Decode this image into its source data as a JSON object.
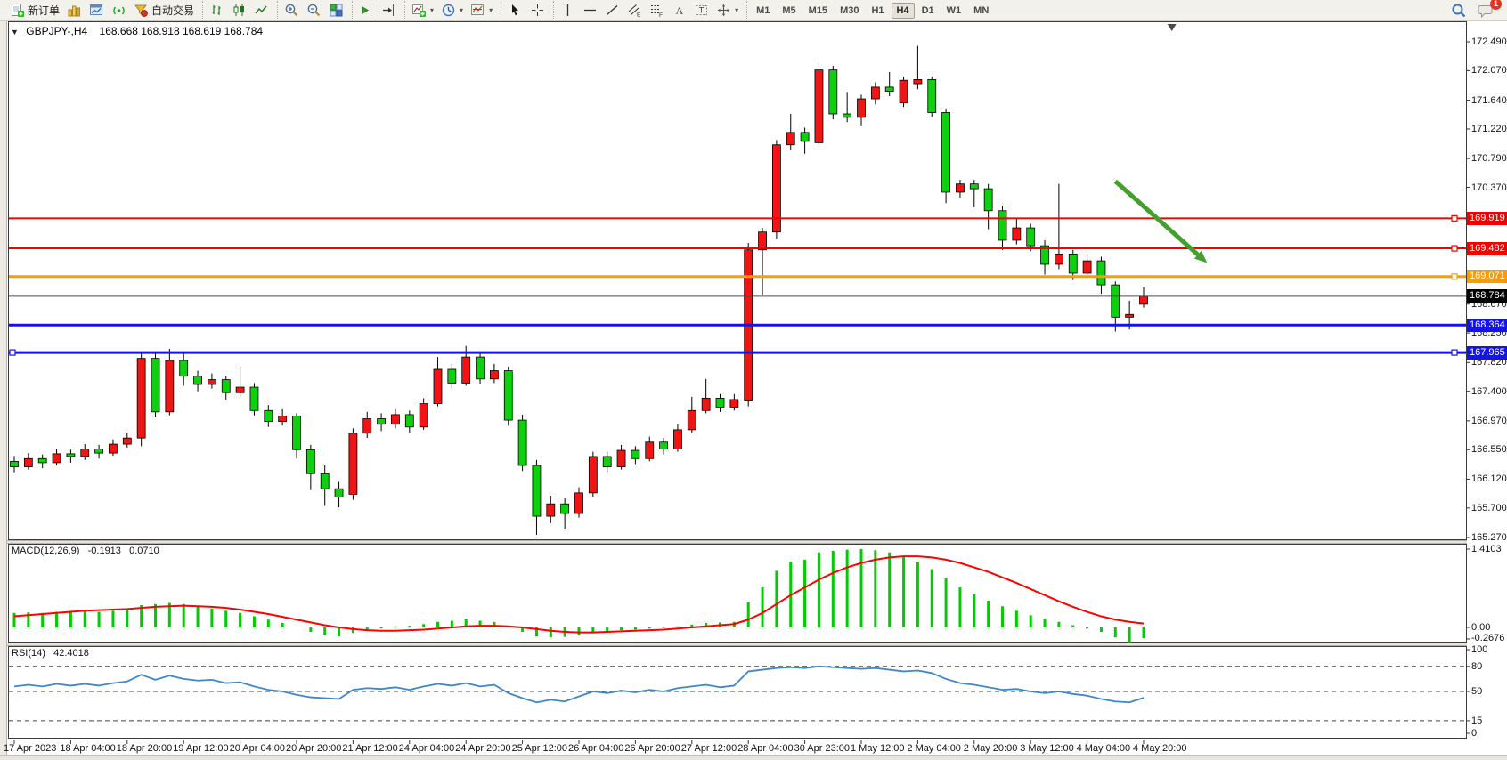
{
  "toolbar": {
    "groups": [
      {
        "name": "trade",
        "items": [
          {
            "name": "new-order-button",
            "icon": "new-order-icon",
            "label": "新订单"
          },
          {
            "name": "chart-window-button",
            "icon": "gold-chart-icon"
          },
          {
            "name": "market-watch-button",
            "icon": "market-watch-icon"
          },
          {
            "name": "signals-button",
            "icon": "signals-icon"
          },
          {
            "name": "auto-trading-button",
            "icon": "auto-trading-icon",
            "label": "自动交易"
          }
        ]
      },
      {
        "name": "chart-type",
        "items": [
          {
            "name": "bar-chart-button",
            "icon": "bar-chart-icon"
          },
          {
            "name": "candlestick-chart-button",
            "icon": "candlestick-chart-icon"
          },
          {
            "name": "line-chart-button",
            "icon": "line-chart-icon"
          }
        ]
      },
      {
        "name": "zoom",
        "items": [
          {
            "name": "zoom-in-button",
            "icon": "zoom-in-icon"
          },
          {
            "name": "zoom-out-button",
            "icon": "zoom-out-icon"
          },
          {
            "name": "tile-windows-button",
            "icon": "tile-windows-icon"
          }
        ]
      },
      {
        "name": "scroll",
        "items": [
          {
            "name": "auto-scroll-button",
            "icon": "auto-scroll-icon"
          },
          {
            "name": "chart-shift-button",
            "icon": "chart-shift-icon"
          }
        ]
      },
      {
        "name": "insert",
        "items": [
          {
            "name": "indicators-button",
            "icon": "indicators-icon",
            "caret": true
          },
          {
            "name": "periods-button",
            "icon": "clock-icon",
            "caret": true
          },
          {
            "name": "templates-button",
            "icon": "templates-icon",
            "caret": true
          }
        ]
      },
      {
        "name": "pointer",
        "items": [
          {
            "name": "cursor-button",
            "icon": "cursor-icon"
          },
          {
            "name": "crosshair-button",
            "icon": "crosshair-icon"
          }
        ]
      },
      {
        "name": "draw",
        "items": [
          {
            "name": "vertical-line-button",
            "icon": "vertical-line-icon"
          },
          {
            "name": "horizontal-line-button",
            "icon": "horizontal-line-icon"
          },
          {
            "name": "trendline-button",
            "icon": "trendline-icon"
          },
          {
            "name": "channel-button",
            "icon": "channel-icon"
          },
          {
            "name": "fibonacci-button",
            "icon": "fibonacci-icon"
          },
          {
            "name": "text-button",
            "icon": "text-icon"
          },
          {
            "name": "label-button",
            "icon": "label-icon"
          },
          {
            "name": "arrows-button",
            "icon": "arrows-icon",
            "caret": true
          }
        ]
      }
    ],
    "timeframes": {
      "options": [
        "M1",
        "M5",
        "M15",
        "M30",
        "H1",
        "H4",
        "D1",
        "W1",
        "MN"
      ],
      "active": "H4"
    },
    "right": [
      {
        "name": "search-button",
        "icon": "search-icon"
      },
      {
        "name": "chat-button",
        "icon": "chat-icon",
        "badge": "1"
      }
    ]
  },
  "chart": {
    "title": "GBPJPY-,H4",
    "ohlc_text": "168.668 168.918 168.619 168.784"
  },
  "chart_data": {
    "type": "candlestick",
    "symbol": "GBPJPY-",
    "timeframe": "H4",
    "colors": {
      "bull": "#f01414",
      "bear": "#0ed00e",
      "wick": "#000000",
      "macd_histogram": "#00cc00",
      "macd_signal": "#ff0000",
      "rsi_line": "#3f87c9",
      "arrow": "#44a02c"
    },
    "y_axis": {
      "min": 165.27,
      "max": 172.49,
      "ticks": [
        "172.490",
        "172.070",
        "171.640",
        "171.220",
        "170.790",
        "170.370",
        "168.670",
        "168.250",
        "167.820",
        "167.400",
        "166.970",
        "166.550",
        "166.120",
        "165.700",
        "165.270"
      ]
    },
    "x_labels": [
      "17 Apr 2023",
      "18 Apr 04:00",
      "18 Apr 20:00",
      "19 Apr 12:00",
      "20 Apr 04:00",
      "20 Apr 20:00",
      "21 Apr 12:00",
      "24 Apr 04:00",
      "24 Apr 20:00",
      "25 Apr 12:00",
      "26 Apr 04:00",
      "26 Apr 20:00",
      "27 Apr 12:00",
      "28 Apr 04:00",
      "30 Apr 23:00",
      "1 May 12:00",
      "2 May 04:00",
      "2 May 20:00",
      "3 May 12:00",
      "4 May 04:00",
      "4 May 20:00"
    ],
    "x_label_every": 4,
    "candles": [
      [
        166.38,
        166.46,
        166.22,
        166.3
      ],
      [
        166.3,
        166.5,
        166.26,
        166.42
      ],
      [
        166.42,
        166.48,
        166.28,
        166.36
      ],
      [
        166.36,
        166.56,
        166.32,
        166.49
      ],
      [
        166.49,
        166.55,
        166.36,
        166.45
      ],
      [
        166.45,
        166.63,
        166.4,
        166.56
      ],
      [
        166.56,
        166.62,
        166.42,
        166.5
      ],
      [
        166.5,
        166.7,
        166.46,
        166.63
      ],
      [
        166.63,
        166.8,
        166.58,
        166.72
      ],
      [
        166.72,
        167.95,
        166.6,
        167.88
      ],
      [
        167.88,
        167.96,
        167.02,
        167.1
      ],
      [
        167.1,
        168.02,
        167.05,
        167.85
      ],
      [
        167.85,
        167.95,
        167.48,
        167.62
      ],
      [
        167.62,
        167.7,
        167.4,
        167.5
      ],
      [
        167.5,
        167.66,
        167.44,
        167.57
      ],
      [
        167.57,
        167.62,
        167.28,
        167.38
      ],
      [
        167.38,
        167.76,
        167.32,
        167.46
      ],
      [
        167.46,
        167.52,
        167.05,
        167.12
      ],
      [
        167.12,
        167.2,
        166.88,
        166.96
      ],
      [
        166.96,
        167.14,
        166.9,
        167.04
      ],
      [
        167.04,
        167.08,
        166.42,
        166.55
      ],
      [
        166.55,
        166.62,
        165.96,
        166.2
      ],
      [
        166.2,
        166.32,
        165.73,
        165.98
      ],
      [
        165.98,
        166.08,
        165.71,
        165.86
      ],
      [
        165.9,
        166.86,
        165.82,
        166.79
      ],
      [
        166.79,
        167.1,
        166.72,
        167.0
      ],
      [
        167.0,
        167.08,
        166.82,
        166.92
      ],
      [
        166.92,
        167.14,
        166.86,
        167.06
      ],
      [
        167.06,
        167.12,
        166.8,
        166.88
      ],
      [
        166.88,
        167.3,
        166.84,
        167.22
      ],
      [
        167.22,
        167.9,
        167.18,
        167.72
      ],
      [
        167.72,
        167.8,
        167.44,
        167.52
      ],
      [
        167.52,
        168.06,
        167.48,
        167.9
      ],
      [
        167.9,
        167.98,
        167.5,
        167.58
      ],
      [
        167.58,
        167.8,
        167.52,
        167.7
      ],
      [
        167.7,
        167.76,
        166.9,
        166.98
      ],
      [
        166.98,
        167.06,
        166.24,
        166.32
      ],
      [
        166.32,
        166.4,
        165.31,
        165.58
      ],
      [
        165.58,
        165.88,
        165.48,
        165.76
      ],
      [
        165.76,
        165.84,
        165.4,
        165.62
      ],
      [
        165.62,
        166.0,
        165.56,
        165.92
      ],
      [
        165.92,
        166.52,
        165.86,
        166.45
      ],
      [
        166.45,
        166.52,
        166.22,
        166.3
      ],
      [
        166.3,
        166.62,
        166.26,
        166.54
      ],
      [
        166.54,
        166.6,
        166.34,
        166.42
      ],
      [
        166.42,
        166.74,
        166.38,
        166.66
      ],
      [
        166.66,
        166.72,
        166.48,
        166.56
      ],
      [
        166.56,
        166.92,
        166.52,
        166.84
      ],
      [
        166.84,
        167.32,
        166.8,
        167.12
      ],
      [
        167.12,
        167.58,
        167.08,
        167.3
      ],
      [
        167.3,
        167.36,
        167.1,
        167.17
      ],
      [
        167.17,
        167.36,
        167.12,
        167.28
      ],
      [
        167.26,
        169.56,
        167.18,
        169.46
      ],
      [
        169.46,
        169.78,
        168.8,
        169.72
      ],
      [
        169.72,
        171.06,
        169.62,
        170.99
      ],
      [
        170.99,
        171.44,
        170.92,
        171.17
      ],
      [
        171.17,
        171.24,
        170.86,
        171.04
      ],
      [
        171.02,
        172.2,
        170.96,
        172.08
      ],
      [
        172.08,
        172.14,
        171.36,
        171.44
      ],
      [
        171.44,
        171.76,
        171.32,
        171.39
      ],
      [
        171.39,
        171.72,
        171.26,
        171.66
      ],
      [
        171.66,
        171.9,
        171.58,
        171.83
      ],
      [
        171.83,
        172.05,
        171.7,
        171.77
      ],
      [
        171.6,
        171.98,
        171.54,
        171.93
      ],
      [
        171.88,
        172.43,
        171.8,
        171.94
      ],
      [
        171.94,
        171.98,
        171.4,
        171.46
      ],
      [
        171.46,
        171.52,
        170.14,
        170.3
      ],
      [
        170.3,
        170.48,
        170.22,
        170.42
      ],
      [
        170.42,
        170.48,
        170.08,
        170.35
      ],
      [
        170.35,
        170.42,
        169.76,
        170.03
      ],
      [
        170.03,
        170.1,
        169.46,
        169.6
      ],
      [
        169.6,
        169.92,
        169.54,
        169.78
      ],
      [
        169.78,
        169.84,
        169.44,
        169.52
      ],
      [
        169.52,
        169.6,
        169.1,
        169.25
      ],
      [
        169.25,
        170.42,
        169.18,
        169.4
      ],
      [
        169.4,
        169.46,
        169.02,
        169.12
      ],
      [
        169.12,
        169.38,
        169.06,
        169.3
      ],
      [
        169.3,
        169.36,
        168.82,
        168.95
      ],
      [
        168.95,
        169.0,
        168.27,
        168.48
      ],
      [
        168.48,
        168.72,
        168.3,
        168.52
      ],
      [
        168.668,
        168.918,
        168.619,
        168.784
      ]
    ],
    "levels": [
      {
        "value": 169.919,
        "label": "169.919",
        "color": "#f40000",
        "width": 2,
        "anchor": "right"
      },
      {
        "value": 169.482,
        "label": "169.482",
        "color": "#f40000",
        "width": 2,
        "anchor": "right"
      },
      {
        "value": 169.071,
        "label": "169.071",
        "color": "#ff9a00",
        "width": 3,
        "anchor": "right"
      },
      {
        "value": 168.364,
        "label": "168.364",
        "color": "#1414e6",
        "width": 3,
        "anchor": "none"
      },
      {
        "value": 167.965,
        "label": "167.965",
        "color": "#1414e6",
        "width": 3,
        "anchor": "both"
      }
    ],
    "current_price": {
      "value": 168.784,
      "label": "168.784",
      "color": "#000000"
    },
    "annotation_arrow": {
      "from_index": 78,
      "from_price": 170.46,
      "to_index": 84.5,
      "to_price": 169.27,
      "color": "#44a02c"
    },
    "macd": {
      "label": "MACD(12,26,9)",
      "value": "-0.1913",
      "signal_value": "0.0710",
      "ticks": [
        {
          "text": "1.4103",
          "v": 1.4103
        },
        {
          "text": "0.00",
          "v": 0.0
        },
        {
          "text": "-0.2676",
          "v": -0.2676
        }
      ],
      "histogram": [
        0.26,
        0.27,
        0.26,
        0.28,
        0.27,
        0.29,
        0.28,
        0.3,
        0.32,
        0.4,
        0.42,
        0.44,
        0.42,
        0.38,
        0.34,
        0.3,
        0.26,
        0.2,
        0.14,
        0.08,
        0.0,
        -0.08,
        -0.14,
        -0.16,
        -0.1,
        -0.05,
        -0.02,
        0.02,
        0.03,
        0.06,
        0.1,
        0.12,
        0.15,
        0.12,
        0.1,
        0.02,
        -0.08,
        -0.16,
        -0.18,
        -0.17,
        -0.14,
        -0.1,
        -0.08,
        -0.05,
        -0.04,
        -0.02,
        -0.01,
        0.02,
        0.05,
        0.08,
        0.09,
        0.1,
        0.45,
        0.72,
        1.02,
        1.18,
        1.22,
        1.35,
        1.38,
        1.4,
        1.41,
        1.39,
        1.35,
        1.28,
        1.18,
        1.05,
        0.88,
        0.72,
        0.6,
        0.48,
        0.38,
        0.3,
        0.22,
        0.15,
        0.1,
        0.04,
        -0.02,
        -0.08,
        -0.18,
        -0.268,
        -0.191
      ],
      "signal": [
        0.2,
        0.22,
        0.24,
        0.26,
        0.28,
        0.3,
        0.31,
        0.32,
        0.33,
        0.35,
        0.37,
        0.38,
        0.39,
        0.38,
        0.37,
        0.35,
        0.32,
        0.28,
        0.24,
        0.19,
        0.14,
        0.09,
        0.04,
        0.0,
        -0.03,
        -0.05,
        -0.06,
        -0.06,
        -0.05,
        -0.04,
        -0.02,
        0.0,
        0.02,
        0.03,
        0.03,
        0.02,
        0.0,
        -0.03,
        -0.06,
        -0.08,
        -0.09,
        -0.09,
        -0.08,
        -0.07,
        -0.06,
        -0.05,
        -0.04,
        -0.02,
        0.0,
        0.02,
        0.04,
        0.06,
        0.14,
        0.26,
        0.42,
        0.58,
        0.72,
        0.86,
        0.98,
        1.08,
        1.16,
        1.22,
        1.26,
        1.28,
        1.28,
        1.26,
        1.22,
        1.16,
        1.08,
        1.0,
        0.9,
        0.8,
        0.69,
        0.58,
        0.47,
        0.37,
        0.28,
        0.2,
        0.14,
        0.1,
        0.071
      ]
    },
    "rsi": {
      "label": "RSI(14)",
      "value": "42.4018",
      "ticks": [
        {
          "text": "100",
          "v": 100
        },
        {
          "text": "80",
          "v": 80
        },
        {
          "text": "50",
          "v": 50
        },
        {
          "text": "15",
          "v": 15
        },
        {
          "text": "0",
          "v": 0
        }
      ],
      "levels": [
        80,
        50,
        15
      ],
      "values": [
        56,
        58,
        56,
        59,
        57,
        59,
        57,
        60,
        62,
        70,
        64,
        69,
        65,
        63,
        64,
        60,
        61,
        56,
        52,
        50,
        46,
        43,
        42,
        41,
        52,
        54,
        53,
        55,
        52,
        56,
        59,
        57,
        60,
        56,
        58,
        48,
        42,
        37,
        40,
        38,
        44,
        50,
        48,
        51,
        49,
        52,
        50,
        54,
        56,
        58,
        55,
        57,
        74,
        76,
        78,
        79,
        78,
        80,
        79,
        78,
        77,
        78,
        76,
        74,
        75,
        72,
        65,
        60,
        58,
        55,
        52,
        53,
        50,
        48,
        50,
        47,
        45,
        41,
        38,
        37,
        42.4
      ]
    }
  }
}
